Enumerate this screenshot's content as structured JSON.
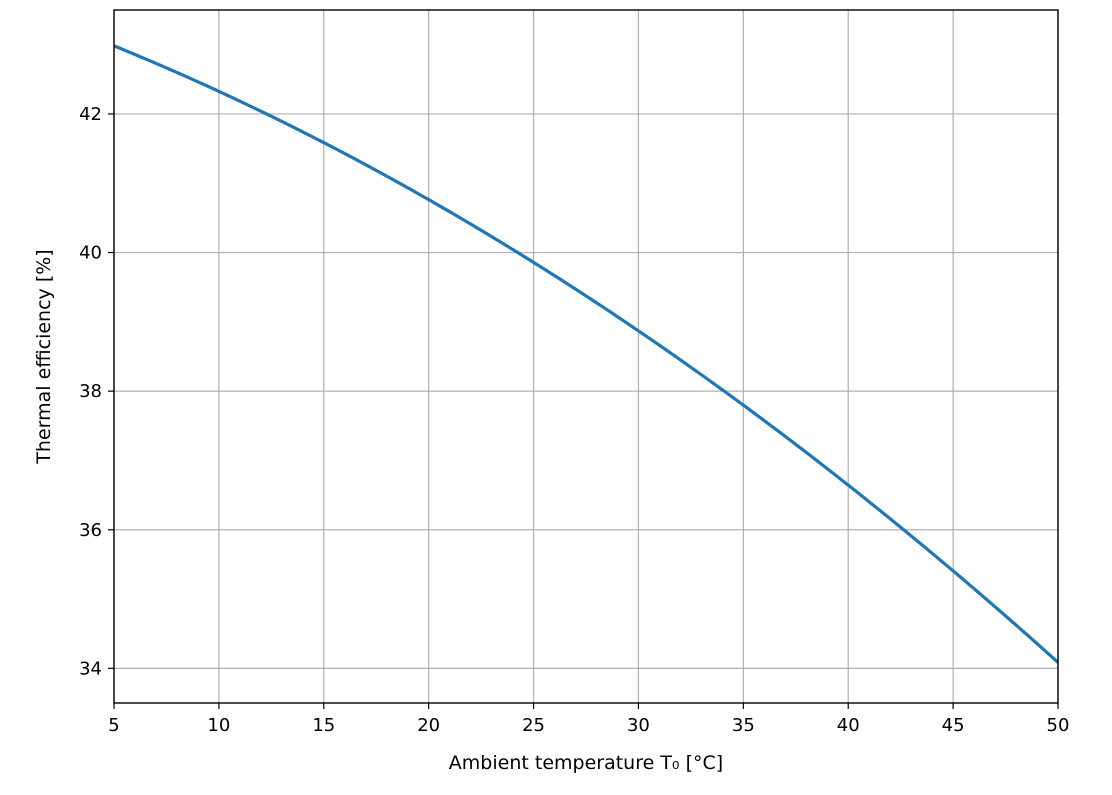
{
  "chart_data": {
    "type": "line",
    "title": "",
    "xlabel": "Ambient temperature T₀ [°C]",
    "ylabel": "Thermal efficiency [%]",
    "xlim": [
      5,
      50
    ],
    "ylim": [
      33.5,
      43.5
    ],
    "xticks": [
      5,
      10,
      15,
      20,
      25,
      30,
      35,
      40,
      45,
      50
    ],
    "yticks": [
      34,
      36,
      38,
      40,
      42
    ],
    "xtick_labels": [
      "5",
      "10",
      "15",
      "20",
      "25",
      "30",
      "35",
      "40",
      "45",
      "50"
    ],
    "ytick_labels": [
      "34",
      "36",
      "38",
      "40",
      "42"
    ],
    "grid": true,
    "series": [
      {
        "color": "#1f77b4",
        "x": [
          5,
          10,
          15,
          20,
          25,
          30,
          35,
          40,
          45,
          50
        ],
        "y": [
          43.05,
          42.32,
          41.52,
          40.7,
          39.83,
          38.89,
          37.85,
          36.72,
          35.44,
          34.0
        ]
      }
    ]
  }
}
